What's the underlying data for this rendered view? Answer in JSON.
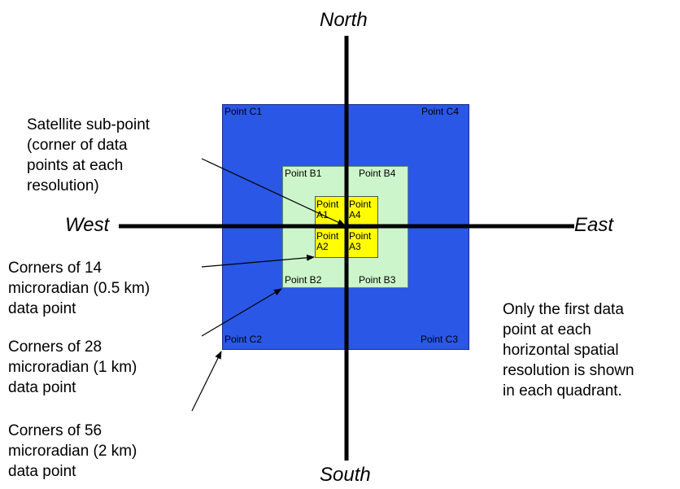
{
  "colors": {
    "quadrant_c": "#2a57e6",
    "quadrant_b": "#ccf5cc",
    "quadrant_a": "#ffff00",
    "axis": "#000000"
  },
  "directions": {
    "north": "North",
    "south": "South",
    "west": "West",
    "east": "East"
  },
  "points": {
    "c1": "Point C1",
    "c2": "Point C2",
    "c3": "Point C3",
    "c4": "Point C4",
    "b1": "Point B1",
    "b2": "Point B2",
    "b3": "Point B3",
    "b4": "Point B4",
    "a1": "Point A1",
    "a2": "Point A2",
    "a3": "Point A3",
    "a4": "Point A4"
  },
  "annotations": {
    "subpoint": "Satellite sub-point\n(corner of data\npoints at each\nresolution)",
    "corners_14": "Corners of 14\nmicroradian (0.5 km)\ndata point",
    "corners_28": "Corners of 28\nmicroradian (1 km)\ndata point",
    "corners_56": "Corners of 56\nmicroradian (2 km)\ndata point",
    "note": "Only the first data\npoint at each\nhorizontal spatial\nresolution is shown\nin each quadrant."
  }
}
